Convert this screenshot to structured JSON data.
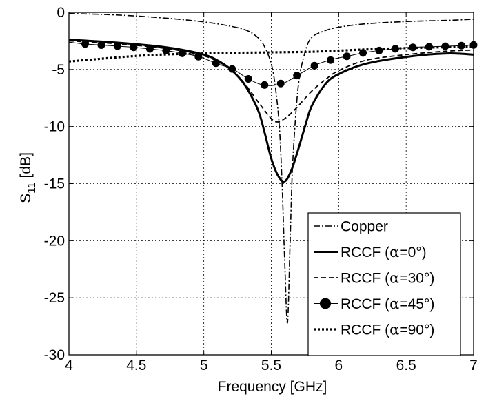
{
  "chart_data": {
    "type": "line",
    "xlabel": "Frequency [GHz]",
    "ylabel_main": "S",
    "ylabel_sub": "11",
    "ylabel_unit": " [dB]",
    "xlim": [
      4,
      7
    ],
    "ylim": [
      -30,
      0
    ],
    "xticks": [
      4,
      4.5,
      5,
      5.5,
      6,
      6.5,
      7
    ],
    "xtick_labels": [
      "4",
      "4.5",
      "5",
      "5.5",
      "6",
      "6.5",
      "7"
    ],
    "yticks": [
      0,
      -5,
      -10,
      -15,
      -20,
      -25,
      -30
    ],
    "ytick_labels": [
      "0",
      "-5",
      "-10",
      "-15",
      "-20",
      "-25",
      "-30"
    ],
    "grid": true,
    "legend_position": "bottom-right",
    "series": [
      {
        "name": "Copper",
        "style": "dashdot",
        "x": [
          4.0,
          4.3,
          4.6,
          4.9,
          5.1,
          5.3,
          5.4,
          5.45,
          5.5,
          5.53,
          5.56,
          5.58,
          5.6,
          5.62,
          5.64,
          5.66,
          5.7,
          5.75,
          5.8,
          5.9,
          6.0,
          6.2,
          6.5,
          6.8,
          7.0
        ],
        "y": [
          -0.1,
          -0.2,
          -0.4,
          -0.7,
          -1.0,
          -1.5,
          -2.2,
          -3.0,
          -4.5,
          -6.5,
          -10.0,
          -15.0,
          -22.0,
          -27.2,
          -20.0,
          -13.0,
          -6.5,
          -3.5,
          -2.2,
          -1.6,
          -1.3,
          -1.0,
          -0.8,
          -0.7,
          -0.6
        ]
      },
      {
        "name": "RCCF (α=0°)",
        "label_prefix": "RCCF (",
        "label_greek": "α",
        "label_suffix": "=0°)",
        "style": "solid",
        "x": [
          4.0,
          4.3,
          4.6,
          4.8,
          5.0,
          5.1,
          5.2,
          5.3,
          5.4,
          5.45,
          5.5,
          5.55,
          5.6,
          5.65,
          5.7,
          5.75,
          5.8,
          5.9,
          6.0,
          6.2,
          6.5,
          6.8,
          7.0
        ],
        "y": [
          -2.4,
          -2.6,
          -2.9,
          -3.2,
          -3.7,
          -4.2,
          -5.0,
          -6.3,
          -8.5,
          -10.5,
          -12.8,
          -14.3,
          -14.8,
          -13.8,
          -12.0,
          -10.0,
          -8.2,
          -6.3,
          -5.4,
          -4.5,
          -3.9,
          -3.6,
          -3.7
        ]
      },
      {
        "name": "RCCF (α=30°)",
        "label_prefix": "RCCF (",
        "label_greek": "α",
        "label_suffix": "=30°)",
        "style": "dashed",
        "x": [
          4.0,
          4.3,
          4.6,
          4.8,
          5.0,
          5.1,
          5.2,
          5.3,
          5.4,
          5.5,
          5.55,
          5.6,
          5.65,
          5.7,
          5.8,
          5.9,
          6.0,
          6.2,
          6.5,
          6.8,
          7.0
        ],
        "y": [
          -2.5,
          -2.7,
          -3.0,
          -3.3,
          -3.8,
          -4.3,
          -5.0,
          -6.2,
          -7.8,
          -9.3,
          -9.6,
          -9.3,
          -8.8,
          -8.2,
          -6.9,
          -5.9,
          -5.1,
          -4.2,
          -3.7,
          -3.4,
          -3.3
        ]
      },
      {
        "name": "RCCF (α=45°)",
        "label_prefix": "RCCF (",
        "label_greek": "α",
        "label_suffix": "=45°)",
        "style": "markers",
        "x": [
          4.0,
          4.1,
          4.22,
          4.35,
          4.47,
          4.6,
          4.72,
          4.85,
          4.97,
          5.1,
          5.22,
          5.34,
          5.46,
          5.59,
          5.71,
          5.83,
          5.96,
          6.08,
          6.2,
          6.33,
          6.45,
          6.57,
          6.7,
          6.82,
          6.94,
          7.0
        ],
        "y": [
          -2.6,
          -2.75,
          -2.85,
          -2.95,
          -3.05,
          -3.2,
          -3.35,
          -3.6,
          -3.9,
          -4.5,
          -5.0,
          -5.9,
          -6.4,
          -6.2,
          -5.4,
          -4.6,
          -4.1,
          -3.8,
          -3.5,
          -3.3,
          -3.15,
          -3.05,
          -3.0,
          -2.95,
          -2.9,
          -2.85
        ],
        "markers_x": [
          4.12,
          4.24,
          4.36,
          4.48,
          4.6,
          4.72,
          4.84,
          4.96,
          5.09,
          5.21,
          5.33,
          5.45,
          5.57,
          5.69,
          5.82,
          5.94,
          6.06,
          6.18,
          6.3,
          6.42,
          6.55,
          6.67,
          6.79,
          6.91,
          7.0
        ]
      },
      {
        "name": "RCCF (α=90°)",
        "label_prefix": "RCCF (",
        "label_greek": "α",
        "label_suffix": "=90°)",
        "style": "dotted",
        "x": [
          4.0,
          4.2,
          4.4,
          4.6,
          4.8,
          5.0,
          5.2,
          5.5,
          5.8,
          6.0,
          6.3,
          6.6,
          7.0
        ],
        "y": [
          -4.3,
          -4.1,
          -3.9,
          -3.75,
          -3.65,
          -3.6,
          -3.55,
          -3.5,
          -3.45,
          -3.35,
          -3.2,
          -3.1,
          -3.0
        ]
      }
    ]
  }
}
